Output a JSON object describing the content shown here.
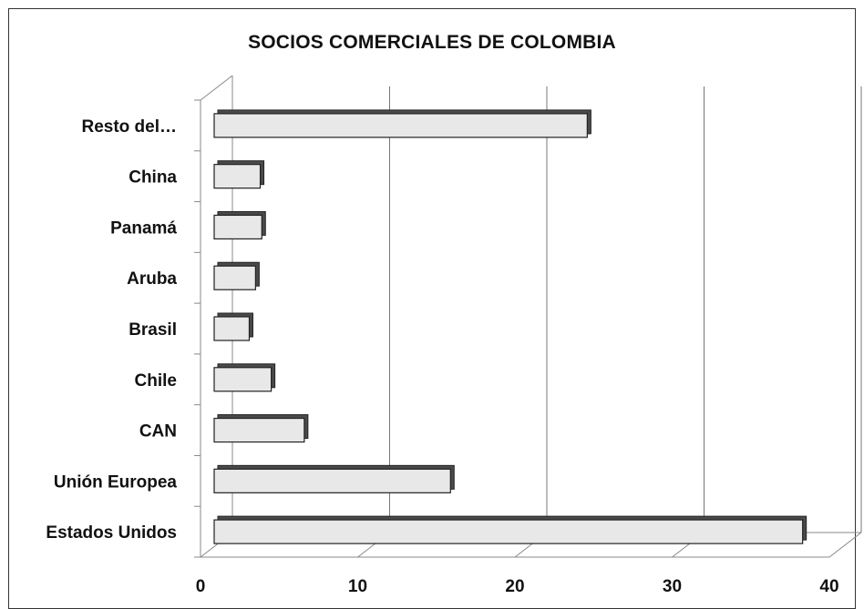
{
  "chart_data": {
    "type": "bar",
    "orientation": "horizontal",
    "title": "SOCIOS COMERCIALES DE COLOMBIA",
    "categories": [
      "Estados Unidos",
      "Unión Europea",
      "CAN",
      "Chile",
      "Brasil",
      "Aruba",
      "Panamá",
      "China",
      "Resto del…"
    ],
    "values": [
      38.3,
      15.9,
      6.6,
      4.5,
      3.1,
      3.5,
      3.9,
      3.8,
      24.6
    ],
    "xlim": [
      0,
      40
    ],
    "xticks": [
      0,
      10,
      20,
      30,
      40
    ],
    "grid": true,
    "style": "3d",
    "colors": {
      "bar_face": "#e8e8e8",
      "bar_shadow": "#4a4a4a",
      "grid": "#777777",
      "axis": "#888888"
    }
  }
}
